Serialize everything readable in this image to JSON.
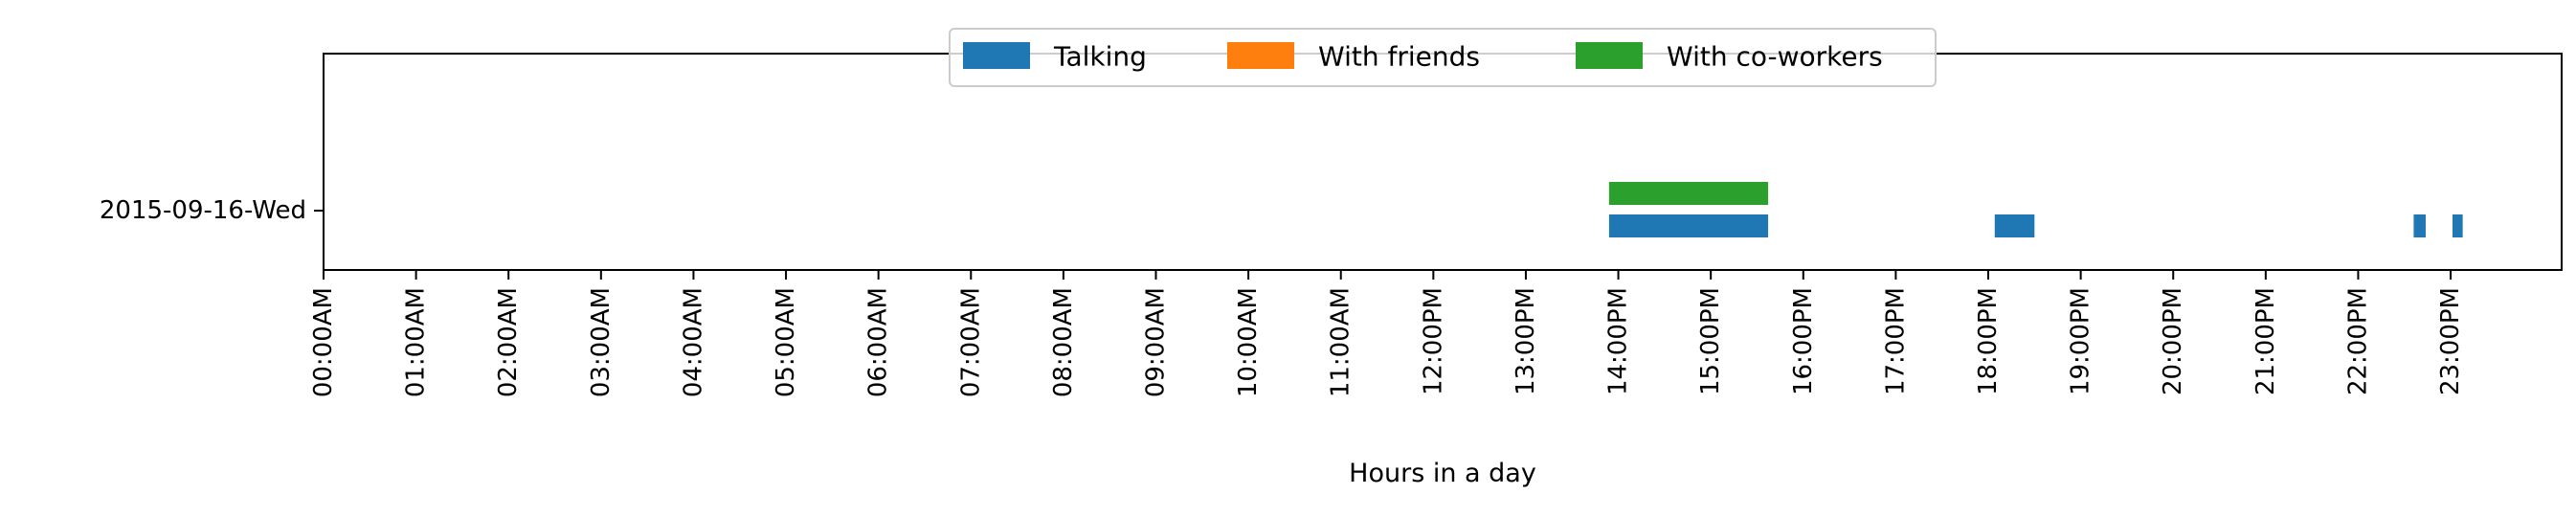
{
  "chart_data": {
    "type": "timeline",
    "xlabel": "Hours in a day",
    "xlim": [
      0,
      24.2
    ],
    "x_ticks": [
      "00:00AM",
      "01:00AM",
      "02:00AM",
      "03:00AM",
      "04:00AM",
      "05:00AM",
      "06:00AM",
      "07:00AM",
      "08:00AM",
      "09:00AM",
      "10:00AM",
      "11:00AM",
      "12:00PM",
      "13:00PM",
      "14:00PM",
      "15:00PM",
      "16:00PM",
      "17:00PM",
      "18:00PM",
      "19:00PM",
      "20:00PM",
      "21:00PM",
      "22:00PM",
      "23:00PM"
    ],
    "categories": [
      "2015-09-16-Wed"
    ],
    "grid": false,
    "legend_position": "top-center",
    "series": [
      {
        "name": "Talking",
        "color": "#1f77b4",
        "intervals": [
          {
            "day": "2015-09-16-Wed",
            "start": 13.9,
            "end": 15.62
          },
          {
            "day": "2015-09-16-Wed",
            "start": 18.07,
            "end": 18.5
          },
          {
            "day": "2015-09-16-Wed",
            "start": 22.6,
            "end": 22.73
          },
          {
            "day": "2015-09-16-Wed",
            "start": 23.02,
            "end": 23.13
          }
        ]
      },
      {
        "name": "With friends",
        "color": "#ff7f0e",
        "intervals": []
      },
      {
        "name": "With co-workers",
        "color": "#2ca02c",
        "intervals": [
          {
            "day": "2015-09-16-Wed",
            "start": 13.9,
            "end": 15.62
          }
        ]
      }
    ]
  }
}
